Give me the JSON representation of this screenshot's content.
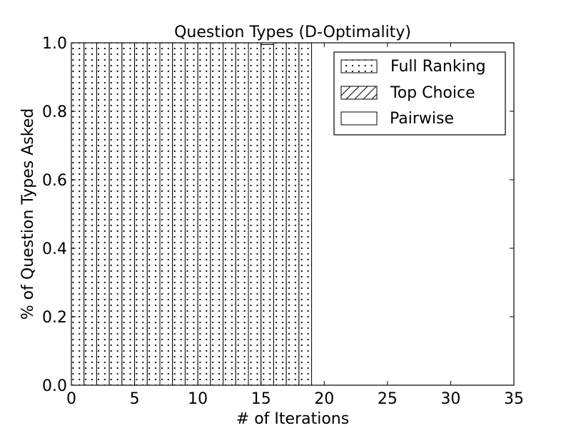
{
  "chart_data": {
    "type": "bar",
    "stacked": true,
    "title": "Question Types (D-Optimality)",
    "xlabel": "# of Iterations",
    "ylabel": "% of Question Types Asked",
    "xlim": [
      0,
      35
    ],
    "ylim": [
      0,
      1.0
    ],
    "xticks": [
      "0",
      "5",
      "10",
      "15",
      "20",
      "25",
      "30",
      "35"
    ],
    "yticks": [
      "0.0",
      "0.2",
      "0.4",
      "0.6",
      "0.8",
      "1.0"
    ],
    "x": [
      0,
      1,
      2,
      3,
      4,
      5,
      6,
      7,
      8,
      9,
      10,
      11,
      12,
      13,
      14,
      15,
      16,
      17,
      18,
      19,
      20,
      21,
      22,
      23,
      24,
      25,
      26,
      27,
      28,
      29,
      30
    ],
    "series": [
      {
        "name": "Full Ranking",
        "pattern": "dots",
        "values": [
          1,
          1,
          1,
          1,
          1,
          1,
          1,
          1,
          1,
          1,
          1,
          1,
          1,
          1,
          1,
          0.995,
          1,
          1,
          1,
          0,
          0,
          0,
          0,
          0,
          0,
          0,
          0,
          0,
          0,
          0,
          0
        ]
      },
      {
        "name": "Top Choice",
        "pattern": "hatch",
        "values": [
          0,
          0,
          0,
          0,
          0,
          0,
          0,
          0,
          0,
          0,
          0,
          0,
          0,
          0,
          0,
          0,
          0,
          0,
          0,
          0,
          0,
          0,
          0,
          0,
          0,
          0,
          0,
          0,
          0,
          0,
          0
        ]
      },
      {
        "name": "Pairwise",
        "pattern": "none",
        "values": [
          0,
          0,
          0,
          0,
          0,
          0,
          0,
          0,
          0,
          0,
          0,
          0,
          0,
          0,
          0,
          0.005,
          0,
          0,
          0,
          0,
          0,
          0,
          0,
          0,
          0,
          0,
          0,
          0,
          0,
          0,
          0
        ]
      }
    ],
    "legend": "top-right",
    "grid": false
  }
}
